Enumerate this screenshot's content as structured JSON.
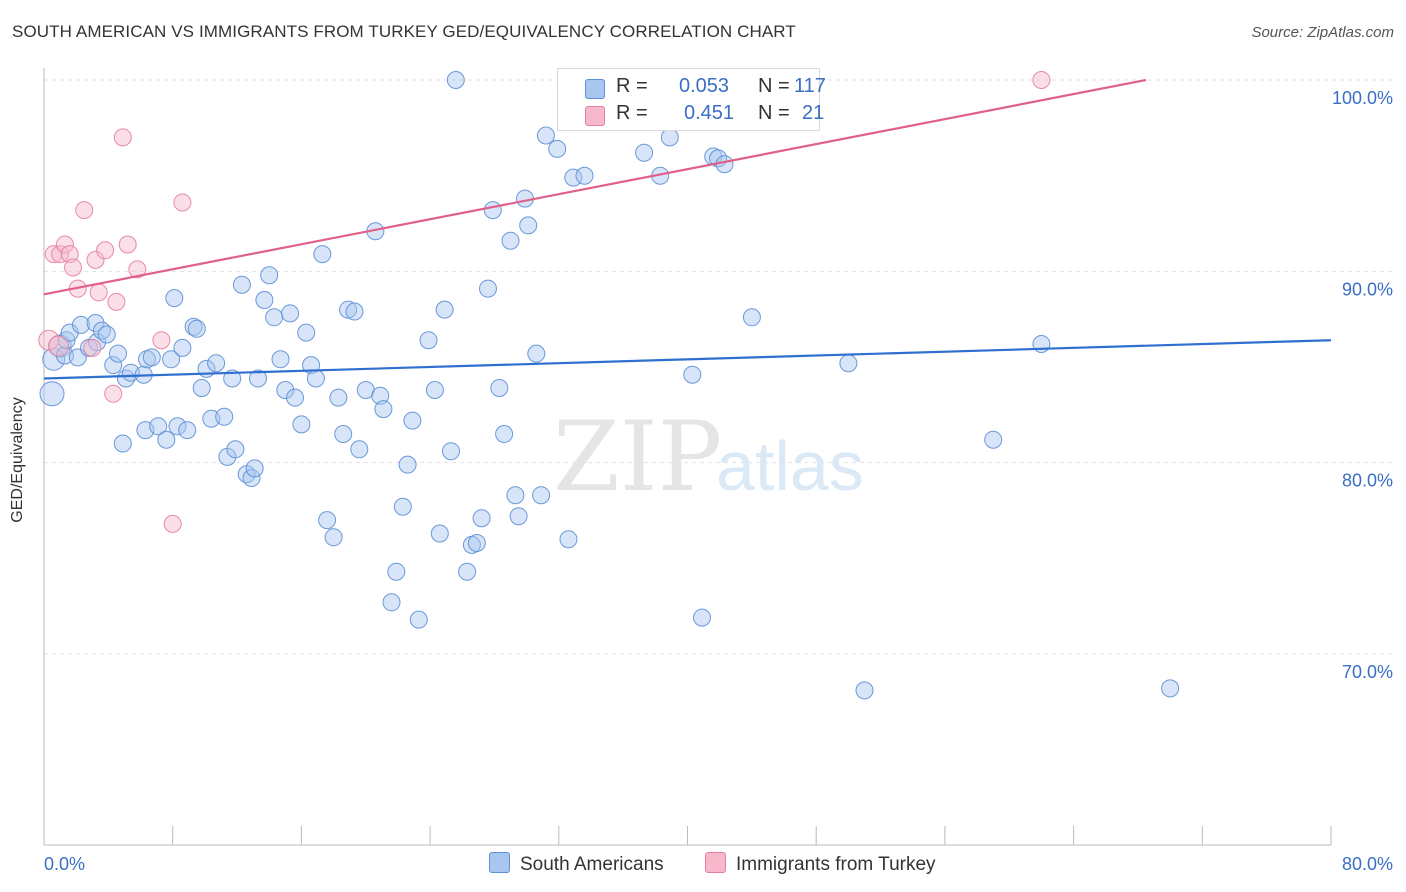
{
  "title": "SOUTH AMERICAN VS IMMIGRANTS FROM TURKEY GED/EQUIVALENCY CORRELATION CHART",
  "source": "Source: ZipAtlas.com",
  "watermark": {
    "zip": "ZIP",
    "atlas": "atlas"
  },
  "legend": {
    "r_label": "R =",
    "n_label": "N =",
    "rows": [
      {
        "series": "South Americans",
        "r": "0.053",
        "n": "117",
        "color": "#a8c6ef",
        "stroke": "#5b8fd6"
      },
      {
        "series": "Immigrants from Turkey",
        "r": "0.451",
        "n": "21",
        "color": "#f7b8cb",
        "stroke": "#e47fa0"
      }
    ]
  },
  "chart_data": {
    "type": "scatter",
    "ylabel": "GED/Equivalency",
    "xlabel": "",
    "xlim": [
      0,
      80
    ],
    "ylim": [
      60,
      100
    ],
    "x_tick_labels": [
      "0.0%",
      "80.0%"
    ],
    "y_tick_labels": [
      "100.0%",
      "90.0%",
      "80.0%",
      "70.0%"
    ],
    "y_ticks": [
      100,
      90,
      80,
      70
    ],
    "grid": true,
    "series": [
      {
        "name": "South Americans",
        "color": "#a8c6ef",
        "stroke": "#5b8fd6",
        "trend": {
          "x0": 0,
          "y0": 84.4,
          "x1": 80,
          "y1": 86.4,
          "color": "#2f6fd0"
        },
        "points": [
          [
            0.5,
            83.6
          ],
          [
            0.6,
            85.4
          ],
          [
            1.0,
            86.1
          ],
          [
            1.3,
            85.6
          ],
          [
            1.4,
            86.4
          ],
          [
            1.6,
            86.8
          ],
          [
            2.1,
            85.5
          ],
          [
            2.3,
            87.2
          ],
          [
            2.8,
            86.0
          ],
          [
            3.2,
            87.3
          ],
          [
            3.3,
            86.3
          ],
          [
            3.6,
            86.9
          ],
          [
            3.9,
            86.7
          ],
          [
            4.3,
            85.1
          ],
          [
            4.6,
            85.7
          ],
          [
            4.9,
            81.0
          ],
          [
            5.1,
            84.4
          ],
          [
            5.4,
            84.7
          ],
          [
            6.2,
            84.6
          ],
          [
            6.4,
            85.4
          ],
          [
            6.3,
            81.7
          ],
          [
            6.7,
            85.5
          ],
          [
            7.1,
            81.9
          ],
          [
            7.6,
            81.2
          ],
          [
            7.9,
            85.4
          ],
          [
            8.1,
            88.6
          ],
          [
            8.3,
            81.9
          ],
          [
            8.6,
            86.0
          ],
          [
            8.9,
            81.7
          ],
          [
            9.3,
            87.1
          ],
          [
            9.5,
            87.0
          ],
          [
            9.8,
            83.9
          ],
          [
            10.1,
            84.9
          ],
          [
            10.4,
            82.3
          ],
          [
            10.7,
            85.2
          ],
          [
            11.2,
            82.4
          ],
          [
            11.4,
            80.3
          ],
          [
            11.7,
            84.4
          ],
          [
            11.9,
            80.7
          ],
          [
            12.3,
            89.3
          ],
          [
            12.6,
            79.4
          ],
          [
            12.9,
            79.2
          ],
          [
            13.1,
            79.7
          ],
          [
            13.3,
            84.4
          ],
          [
            13.7,
            88.5
          ],
          [
            14.0,
            89.8
          ],
          [
            14.3,
            87.6
          ],
          [
            14.7,
            85.4
          ],
          [
            15.0,
            83.8
          ],
          [
            15.3,
            87.8
          ],
          [
            15.6,
            83.4
          ],
          [
            16.0,
            82.0
          ],
          [
            16.3,
            86.8
          ],
          [
            16.6,
            85.1
          ],
          [
            16.9,
            84.4
          ],
          [
            17.3,
            90.9
          ],
          [
            17.6,
            77.0
          ],
          [
            18.0,
            76.1
          ],
          [
            18.3,
            83.4
          ],
          [
            18.6,
            81.5
          ],
          [
            18.9,
            88.0
          ],
          [
            19.3,
            87.9
          ],
          [
            19.6,
            80.7
          ],
          [
            20.0,
            83.8
          ],
          [
            20.6,
            92.1
          ],
          [
            20.9,
            83.5
          ],
          [
            21.1,
            82.8
          ],
          [
            21.6,
            72.7
          ],
          [
            21.9,
            74.3
          ],
          [
            22.3,
            77.7
          ],
          [
            22.6,
            79.9
          ],
          [
            22.9,
            82.2
          ],
          [
            23.3,
            71.8
          ],
          [
            23.9,
            86.4
          ],
          [
            24.3,
            83.8
          ],
          [
            24.6,
            76.3
          ],
          [
            24.9,
            88.0
          ],
          [
            25.3,
            80.6
          ],
          [
            25.6,
            100.0
          ],
          [
            26.3,
            74.3
          ],
          [
            26.6,
            75.7
          ],
          [
            26.9,
            75.8
          ],
          [
            27.2,
            77.1
          ],
          [
            27.6,
            89.1
          ],
          [
            27.9,
            93.2
          ],
          [
            28.3,
            83.9
          ],
          [
            28.6,
            81.5
          ],
          [
            29.0,
            91.6
          ],
          [
            29.3,
            78.3
          ],
          [
            29.5,
            77.2
          ],
          [
            29.9,
            93.8
          ],
          [
            30.1,
            92.4
          ],
          [
            30.6,
            85.7
          ],
          [
            30.9,
            78.3
          ],
          [
            31.2,
            97.1
          ],
          [
            31.9,
            96.4
          ],
          [
            32.6,
            76.0
          ],
          [
            32.9,
            94.9
          ],
          [
            33.6,
            95.0
          ],
          [
            37.3,
            96.2
          ],
          [
            38.3,
            95.0
          ],
          [
            38.9,
            97.0
          ],
          [
            40.3,
            84.6
          ],
          [
            40.9,
            71.9
          ],
          [
            41.6,
            96.0
          ],
          [
            41.9,
            95.9
          ],
          [
            42.3,
            95.6
          ],
          [
            44.0,
            87.6
          ],
          [
            50.0,
            85.2
          ],
          [
            51.0,
            68.1
          ],
          [
            59.0,
            81.2
          ],
          [
            62.0,
            86.2
          ],
          [
            70.0,
            68.2
          ],
          [
            33.0,
            100.0
          ],
          [
            35.0,
            100.0
          ],
          [
            36.5,
            100.0
          ]
        ]
      },
      {
        "name": "Immigrants from Turkey",
        "color": "#f7b8cb",
        "stroke": "#e47fa0",
        "trend": {
          "x0": 0,
          "y0": 88.8,
          "x1": 68.5,
          "y1": 100,
          "color": "#e0608a"
        },
        "points": [
          [
            0.3,
            86.4
          ],
          [
            0.6,
            90.9
          ],
          [
            0.9,
            86.1
          ],
          [
            1.0,
            90.9
          ],
          [
            1.3,
            91.4
          ],
          [
            1.6,
            90.9
          ],
          [
            1.8,
            90.2
          ],
          [
            2.1,
            89.1
          ],
          [
            2.5,
            93.2
          ],
          [
            3.0,
            86.0
          ],
          [
            3.2,
            90.6
          ],
          [
            3.4,
            88.9
          ],
          [
            3.8,
            91.1
          ],
          [
            4.3,
            83.6
          ],
          [
            4.5,
            88.4
          ],
          [
            4.9,
            97.0
          ],
          [
            5.2,
            91.4
          ],
          [
            5.8,
            90.1
          ],
          [
            7.3,
            86.4
          ],
          [
            8.0,
            76.8
          ],
          [
            8.6,
            93.6
          ],
          [
            62.0,
            100.0
          ]
        ]
      }
    ]
  }
}
